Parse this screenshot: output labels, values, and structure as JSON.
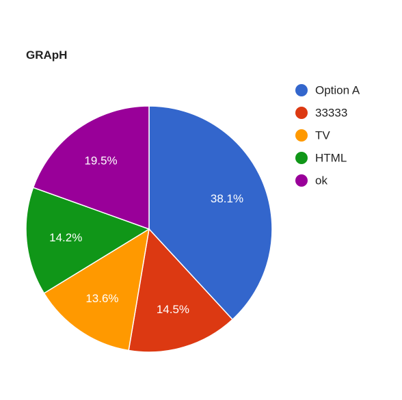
{
  "chart_data": {
    "type": "pie",
    "title": "GRApH",
    "legend_position": "right",
    "slices": [
      {
        "label": "Option A",
        "percent": 38.1,
        "display": "38.1%",
        "color": "#3366cc"
      },
      {
        "label": "33333",
        "percent": 14.5,
        "display": "14.5%",
        "color": "#dc3912"
      },
      {
        "label": "TV",
        "percent": 13.6,
        "display": "13.6%",
        "color": "#ff9900"
      },
      {
        "label": "HTML",
        "percent": 14.2,
        "display": "14.2%",
        "color": "#109618"
      },
      {
        "label": "ok",
        "percent": 19.5,
        "display": "19.5%",
        "color": "#990099"
      }
    ]
  }
}
